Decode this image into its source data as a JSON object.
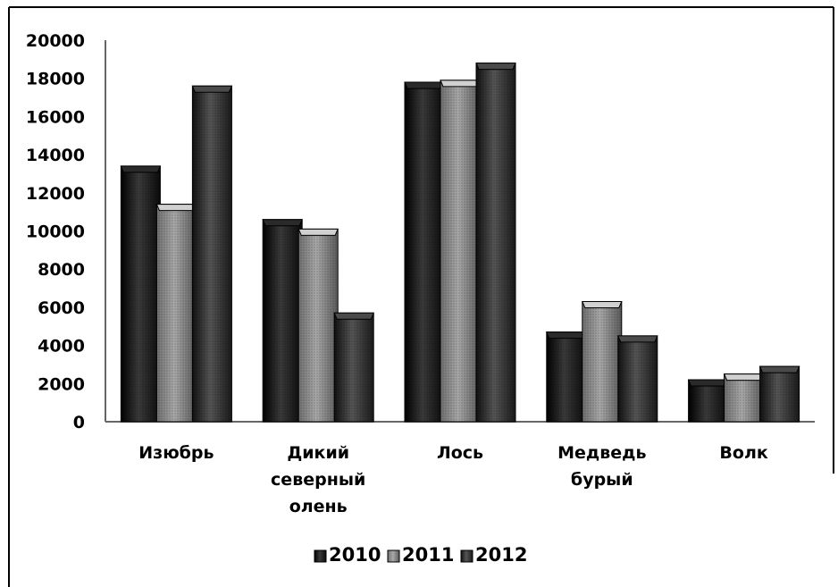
{
  "chart_data": {
    "type": "bar",
    "title": "",
    "xlabel": "",
    "ylabel": "",
    "ylim": [
      0,
      20000
    ],
    "yticks": [
      0,
      2000,
      4000,
      6000,
      8000,
      10000,
      12000,
      14000,
      16000,
      18000,
      20000
    ],
    "grid": false,
    "legend": "bottom",
    "categories": [
      [
        "Изюбрь"
      ],
      [
        "Дикий",
        "северный",
        "олень"
      ],
      [
        "Лось"
      ],
      [
        "Медведь",
        "бурый"
      ],
      [
        "Волк"
      ]
    ],
    "series": [
      {
        "name": "2010",
        "values": [
          13400,
          10600,
          17800,
          4700,
          2200
        ]
      },
      {
        "name": "2011",
        "values": [
          11400,
          10100,
          17900,
          6300,
          2500
        ]
      },
      {
        "name": "2012",
        "values": [
          17600,
          5700,
          18800,
          4500,
          2900
        ]
      }
    ]
  },
  "colors": {
    "series_2010": "#1c1c1c",
    "series_2011": "#8a8a8a",
    "series_2012": "#2f2f2f",
    "border": "#000000",
    "axis": "#555555"
  }
}
